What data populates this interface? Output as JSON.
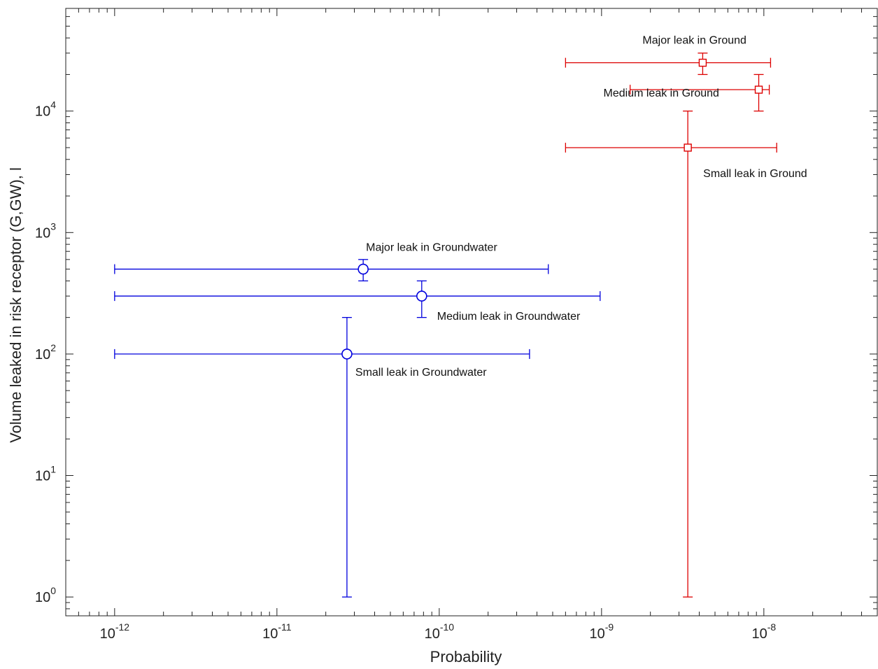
{
  "chart_data": {
    "type": "scatter",
    "title": "",
    "xlabel": "Probability",
    "ylabel": "Volume leaked in risk receptor (G,GW), l",
    "xscale": "log",
    "yscale": "log",
    "xlim": [
      5e-13,
      5e-08
    ],
    "ylim": [
      0.7,
      70000
    ],
    "x_ticks": [
      {
        "value": 1e-12,
        "base": "10",
        "exp": "-12"
      },
      {
        "value": 1e-11,
        "base": "10",
        "exp": "-11"
      },
      {
        "value": 1e-10,
        "base": "10",
        "exp": "-10"
      },
      {
        "value": 1e-09,
        "base": "10",
        "exp": "-9"
      },
      {
        "value": 1e-08,
        "base": "10",
        "exp": "-8"
      }
    ],
    "y_ticks": [
      {
        "value": 1,
        "base": "10",
        "exp": "0"
      },
      {
        "value": 10,
        "base": "10",
        "exp": "1"
      },
      {
        "value": 100,
        "base": "10",
        "exp": "2"
      },
      {
        "value": 1000,
        "base": "10",
        "exp": "3"
      },
      {
        "value": 10000,
        "base": "10",
        "exp": "4"
      }
    ],
    "grid": false,
    "series": [
      {
        "color": "#0000dd",
        "marker": "circle",
        "points": [
          {
            "label": "Major leak in Groundwater",
            "x": 3.4e-11,
            "y": 500,
            "xerr": [
              1e-12,
              4.7e-10
            ],
            "yerr": [
              400,
              600
            ]
          },
          {
            "label": "Medium leak in Groundwater",
            "x": 7.8e-11,
            "y": 300,
            "xerr": [
              1e-12,
              9.8e-10
            ],
            "yerr": [
              200,
              400
            ]
          },
          {
            "label": "Small leak in Groundwater",
            "x": 2.7e-11,
            "y": 100,
            "xerr": [
              1e-12,
              3.6e-10
            ],
            "yerr": [
              1,
              200
            ]
          }
        ]
      },
      {
        "color": "#dd0000",
        "marker": "square",
        "points": [
          {
            "label": "Major leak in Ground",
            "x": 4.2e-09,
            "y": 25000,
            "xerr": [
              6e-10,
              1.1e-08
            ],
            "yerr": [
              20000,
              30000
            ]
          },
          {
            "label": "Medium leak in Ground",
            "x": 9.3e-09,
            "y": 15000,
            "xerr": [
              1.5e-09,
              1.08e-08
            ],
            "yerr": [
              10000,
              20000
            ]
          },
          {
            "label": "Small leak in Ground",
            "x": 3.4e-09,
            "y": 5000,
            "xerr": [
              6e-10,
              1.2e-08
            ],
            "yerr": [
              1,
              10000
            ]
          }
        ]
      }
    ]
  }
}
